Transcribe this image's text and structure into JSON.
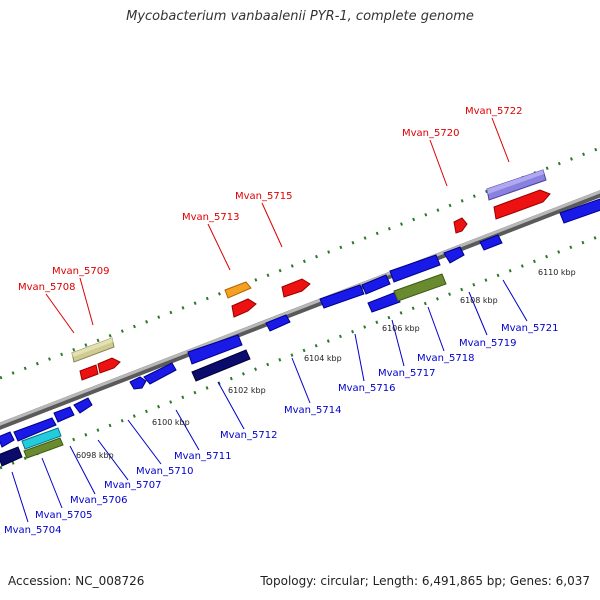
{
  "title": "Mycobacterium vanbaalenii PYR-1, complete genome",
  "footer": {
    "accession": "Accession: NC_008726",
    "topology": "Topology: circular; Length: 6,491,865 bp; Genes: 6,037"
  },
  "colors": {
    "top_label": "#dd0000",
    "bottom_label": "#0000cc",
    "ticks": "#2a7a2a",
    "backbone": "#8a8a8a"
  },
  "axis_ticks": [
    "6098 kbp",
    "6100 kbp",
    "6102 kbp",
    "6104 kbp",
    "6106 kbp",
    "6108 kbp",
    "6110 kbp"
  ],
  "top_genes": [
    "Mvan_5708",
    "Mvan_5709",
    "Mvan_5713",
    "Mvan_5715",
    "Mvan_5720",
    "Mvan_5722"
  ],
  "bottom_genes": [
    "Mvan_5704",
    "Mvan_5705",
    "Mvan_5706",
    "Mvan_5707",
    "Mvan_5710",
    "Mvan_5711",
    "Mvan_5712",
    "Mvan_5714",
    "Mvan_5716",
    "Mvan_5717",
    "Mvan_5718",
    "Mvan_5719",
    "Mvan_5721"
  ]
}
